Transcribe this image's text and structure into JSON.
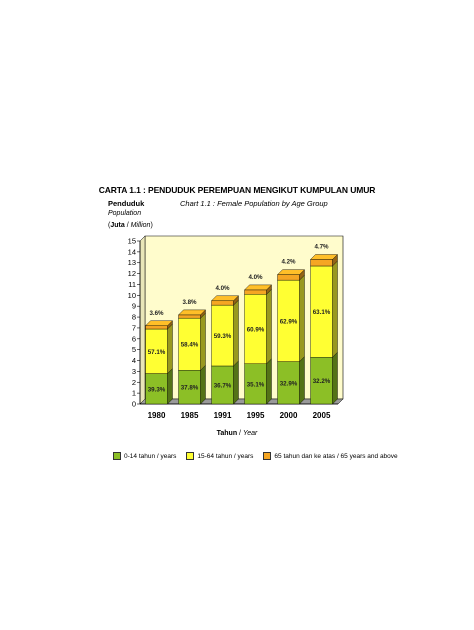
{
  "chart_data": {
    "type": "bar",
    "stacked": true,
    "title": "CARTA 1.1 : PENDUDUK PEREMPUAN MENGIKUT KUMPULAN UMUR",
    "subtitle": "Chart 1.1 : Female Population by Age Group",
    "ylabel": {
      "line1": "Penduduk",
      "line2": "Population",
      "line3_bold": "Juta",
      "line3_sep": " / ",
      "line3_italic": "Million",
      "open": "(",
      "close": ")"
    },
    "xlabel": {
      "bold": "Tahun",
      "sep": " / ",
      "italic": "Year"
    },
    "categories": [
      "1980",
      "1985",
      "1991",
      "1995",
      "2000",
      "2005"
    ],
    "ylim": [
      0,
      15
    ],
    "yticks": [
      "0",
      "1",
      "2",
      "3",
      "4",
      "5",
      "6",
      "7",
      "8",
      "9",
      "10",
      "11",
      "12",
      "13",
      "14",
      "15"
    ],
    "grid": false,
    "legend_position": "bottom",
    "series": [
      {
        "name": "0-14 tahun / years",
        "color": "#8cbf26",
        "values": [
          2.8,
          3.1,
          3.5,
          3.7,
          3.9,
          4.3
        ],
        "labels": [
          "39.3%",
          "37.8%",
          "36.7%",
          "35.1%",
          "32.9%",
          "32.2%"
        ]
      },
      {
        "name": "15-64 tahun / years",
        "color": "#ffff33",
        "values": [
          4.1,
          4.8,
          5.6,
          6.4,
          7.5,
          8.4
        ],
        "labels": [
          "57.1%",
          "58.4%",
          "59.3%",
          "60.9%",
          "62.9%",
          "63.1%"
        ]
      },
      {
        "name": "65 tahun dan ke atas / 65 years and above",
        "color": "#f5a623",
        "values": [
          0.3,
          0.3,
          0.4,
          0.4,
          0.5,
          0.6
        ],
        "labels": [
          "3.6%",
          "3.8%",
          "4.0%",
          "4.0%",
          "4.2%",
          "4.7%"
        ]
      }
    ],
    "colors": {
      "plot_background": "#fffccc",
      "floor": "#9a9a9a",
      "side_dark": "#5a5a00"
    }
  }
}
